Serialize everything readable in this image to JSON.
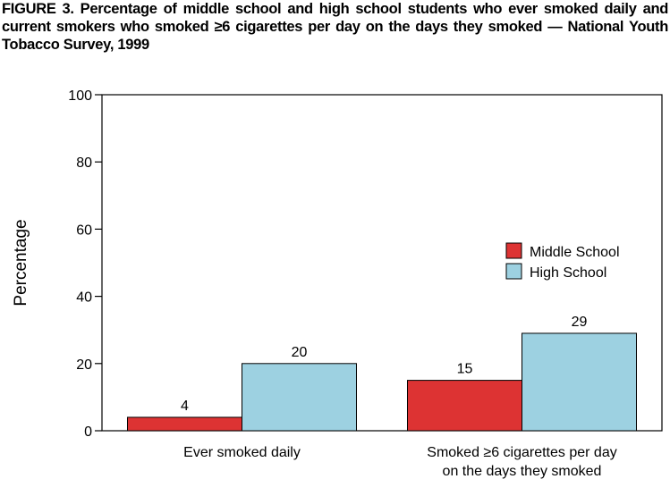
{
  "figure": {
    "title": "FIGURE 3. Percentage of middle school and high school students who ever smoked daily and current smokers who smoked ≥6 cigarettes per day on the days they smoked — National Youth Tobacco Survey, 1999"
  },
  "chart_data": {
    "type": "bar",
    "title": "FIGURE 3. Percentage of middle school and high school students who ever smoked daily and current smokers who smoked ≥6 cigarettes per day on the days they smoked — National Youth Tobacco Survey, 1999",
    "xlabel": "",
    "ylabel": "Percentage",
    "ylim": [
      0,
      100
    ],
    "yticks": [
      0,
      20,
      40,
      60,
      80,
      100
    ],
    "grid": false,
    "legend_position": "right",
    "categories": [
      [
        "Ever smoked daily"
      ],
      [
        "Smoked ≥6 cigarettes per day",
        "on the days they smoked"
      ]
    ],
    "series": [
      {
        "name": "Middle School",
        "values": [
          4,
          15
        ],
        "color": "#dd3333"
      },
      {
        "name": "High School",
        "values": [
          20,
          29
        ],
        "color": "#9dd1e1"
      }
    ]
  }
}
